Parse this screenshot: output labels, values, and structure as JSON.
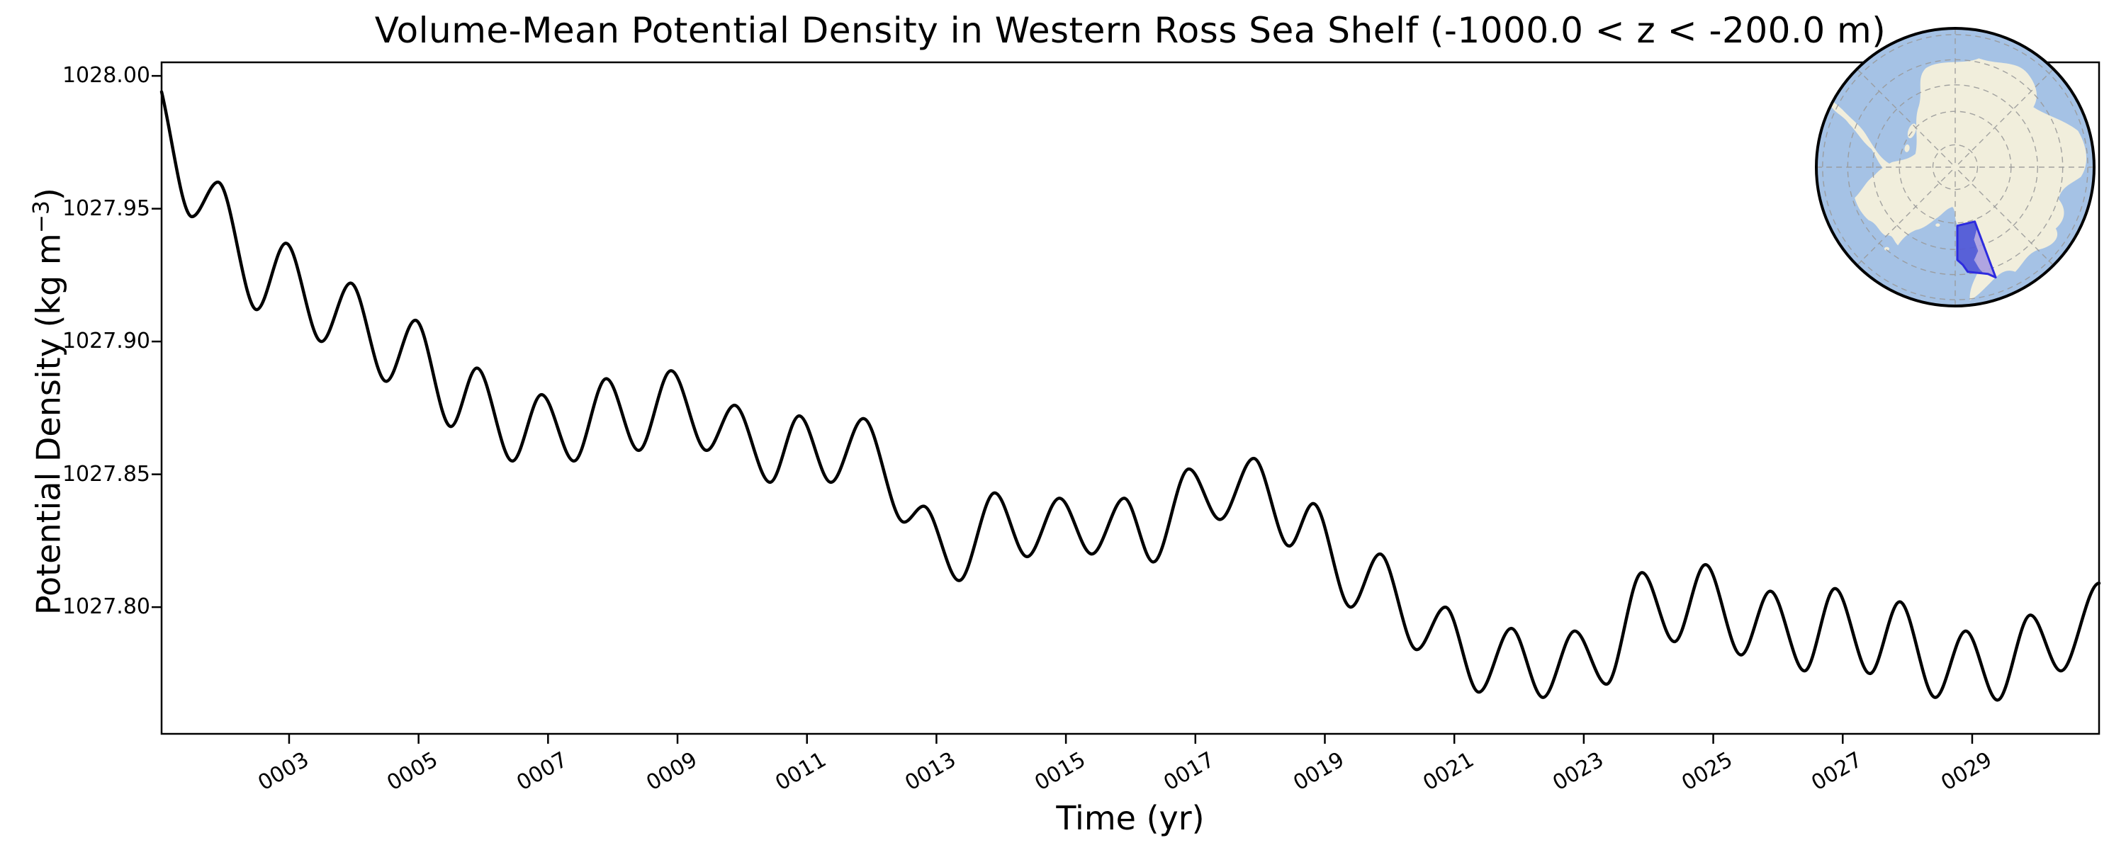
{
  "figure": {
    "title": "Volume-Mean Potential Density in Western Ross Sea Shelf (-1000.0 < z < -200.0 m)",
    "xlabel": "Time (yr)",
    "ylabel_pre": "Potential Density (kg m",
    "ylabel_sup": "−3",
    "ylabel_post": ")",
    "background_color": "#ffffff",
    "axis_color": "#000000"
  },
  "chart_data": {
    "type": "line",
    "title": "Volume-Mean Potential Density in Western Ross Sea Shelf (-1000.0 < z < -200.0 m)",
    "xlabel": "Time (yr)",
    "ylabel": "Potential Density (kg m⁻³)",
    "grid": false,
    "legend": null,
    "xlim": [
      1.03,
      30.96
    ],
    "ylim": [
      1027.7523,
      1028.0051
    ],
    "xticks": [
      {
        "value": 3,
        "label": "0003"
      },
      {
        "value": 5,
        "label": "0005"
      },
      {
        "value": 7,
        "label": "0007"
      },
      {
        "value": 9,
        "label": "0009"
      },
      {
        "value": 11,
        "label": "0011"
      },
      {
        "value": 13,
        "label": "0013"
      },
      {
        "value": 15,
        "label": "0015"
      },
      {
        "value": 17,
        "label": "0017"
      },
      {
        "value": 19,
        "label": "0019"
      },
      {
        "value": 21,
        "label": "0021"
      },
      {
        "value": 23,
        "label": "0023"
      },
      {
        "value": 25,
        "label": "0025"
      },
      {
        "value": 27,
        "label": "0027"
      },
      {
        "value": 29,
        "label": "0029"
      }
    ],
    "yticks": [
      {
        "value": 1028.0,
        "label": "1028.00"
      },
      {
        "value": 1027.95,
        "label": "1027.95"
      },
      {
        "value": 1027.9,
        "label": "1027.90"
      },
      {
        "value": 1027.85,
        "label": "1027.85"
      },
      {
        "value": 1027.8,
        "label": "1027.80"
      }
    ],
    "series": [
      {
        "name": "volume-mean potential density",
        "color": "#000000",
        "line_width": 4.5,
        "x": [
          1.03,
          1.5,
          1.9,
          2.5,
          2.95,
          3.5,
          3.95,
          4.5,
          4.95,
          5.5,
          5.9,
          6.45,
          6.9,
          7.4,
          7.9,
          8.4,
          8.9,
          9.45,
          9.88,
          10.43,
          10.88,
          11.37,
          11.87,
          12.5,
          12.8,
          13.35,
          13.9,
          14.4,
          14.9,
          15.4,
          15.9,
          16.35,
          16.9,
          17.38,
          17.9,
          18.45,
          18.82,
          19.4,
          19.85,
          20.42,
          20.86,
          21.38,
          21.88,
          22.37,
          22.86,
          23.35,
          23.9,
          24.4,
          24.88,
          25.43,
          25.88,
          26.41,
          26.88,
          27.42,
          27.88,
          28.43,
          28.9,
          29.39,
          29.9,
          30.37,
          30.96
        ],
        "y": [
          1027.994,
          1027.947,
          1027.96,
          1027.912,
          1027.937,
          1027.9,
          1027.922,
          1027.885,
          1027.908,
          1027.868,
          1027.89,
          1027.855,
          1027.88,
          1027.855,
          1027.886,
          1027.859,
          1027.889,
          1027.859,
          1027.876,
          1027.847,
          1027.872,
          1027.847,
          1027.871,
          1027.832,
          1027.838,
          1027.81,
          1027.843,
          1027.819,
          1027.841,
          1027.82,
          1027.841,
          1027.817,
          1027.852,
          1027.833,
          1027.856,
          1027.823,
          1027.839,
          1027.8,
          1027.82,
          1027.784,
          1027.8,
          1027.768,
          1027.792,
          1027.766,
          1027.791,
          1027.771,
          1027.813,
          1027.787,
          1027.816,
          1027.782,
          1027.806,
          1027.776,
          1027.807,
          1027.775,
          1027.802,
          1027.766,
          1027.791,
          1027.765,
          1027.797,
          1027.776,
          1027.809
        ]
      }
    ],
    "inset_map": {
      "description": "South polar stereographic map of Antarctica with the Western Ross Sea shelf region highlighted",
      "ocean_color": "#a5c2e5",
      "land_color": "#f1eedc",
      "graticule_color": "#999999",
      "edge_color": "#000000",
      "region_border_color": "#2d2bde",
      "region_ocean_fill": "#5056d6",
      "region_land_fill": "#a89ce1",
      "region_outline": [
        [
          0.015,
          0.42
        ],
        [
          0.14,
          0.39
        ],
        [
          0.29,
          0.79
        ],
        [
          0.235,
          0.765
        ],
        [
          0.09,
          0.75
        ],
        [
          0.055,
          0.7
        ],
        [
          0.015,
          0.665
        ]
      ],
      "region_polygon_ocean": [
        [
          0.015,
          0.42
        ],
        [
          0.14,
          0.39
        ],
        [
          0.155,
          0.445
        ],
        [
          0.135,
          0.52
        ],
        [
          0.165,
          0.6
        ],
        [
          0.135,
          0.665
        ],
        [
          0.175,
          0.73
        ],
        [
          0.205,
          0.762
        ],
        [
          0.09,
          0.75
        ],
        [
          0.055,
          0.7
        ],
        [
          0.015,
          0.665
        ]
      ],
      "region_polygon_land": [
        [
          0.14,
          0.39
        ],
        [
          0.29,
          0.79
        ],
        [
          0.235,
          0.765
        ],
        [
          0.205,
          0.762
        ],
        [
          0.175,
          0.73
        ],
        [
          0.135,
          0.665
        ],
        [
          0.165,
          0.6
        ],
        [
          0.135,
          0.52
        ],
        [
          0.155,
          0.445
        ]
      ],
      "graticule_circle_fractions": [
        0.16,
        0.4,
        0.59,
        0.77,
        0.95
      ],
      "graticule_radial_count": 8
    }
  }
}
